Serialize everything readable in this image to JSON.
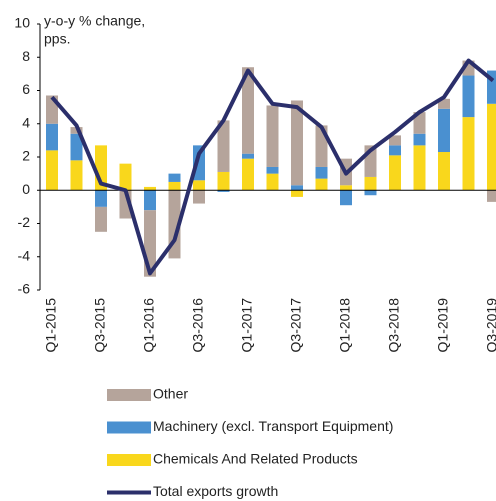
{
  "chart_data": {
    "type": "stacked_bar_line",
    "y_label": [
      "y-o-y % change,",
      "pps."
    ],
    "categories": [
      "Q1-2015",
      null,
      "Q3-2015",
      null,
      "Q1-2016",
      null,
      "Q3-2016",
      null,
      "Q1-2017",
      null,
      "Q3-2017",
      null,
      "Q1-2018",
      null,
      "Q3-2018",
      null,
      "Q1-2019",
      null,
      "Q3-2019"
    ],
    "series": [
      {
        "name": "Chemicals And Related Products",
        "color": "#f9d71c",
        "kind": "bar",
        "values": [
          2.4,
          1.8,
          2.7,
          1.6,
          0.2,
          0.5,
          0.6,
          1.1,
          1.9,
          1.0,
          -0.4,
          0.7,
          0.3,
          0.8,
          2.1,
          2.7,
          2.3,
          4.4,
          5.2
        ]
      },
      {
        "name": "Machinery (excl. Transport Equipment)",
        "color": "#4a90d0",
        "kind": "bar",
        "values": [
          1.6,
          1.6,
          -1.0,
          0,
          -1.2,
          0.5,
          2.1,
          -0.1,
          0.3,
          0.4,
          0.3,
          0.7,
          -0.9,
          -0.3,
          0.6,
          0.7,
          2.6,
          2.5,
          2.0
        ]
      },
      {
        "name": "Other",
        "color": "#b5a49b",
        "kind": "bar",
        "values": [
          1.7,
          0.4,
          -1.5,
          -1.7,
          -4.0,
          -4.1,
          -0.8,
          3.1,
          5.2,
          3.7,
          5.1,
          2.5,
          1.6,
          1.9,
          0.6,
          1.3,
          0.6,
          0.9,
          -0.7
        ]
      },
      {
        "name": "Total exports growth",
        "color": "#2b2f6b",
        "kind": "line",
        "values": [
          5.6,
          3.9,
          0.4,
          0,
          -5.0,
          -3.0,
          2.2,
          4.2,
          7.2,
          5.2,
          5.0,
          3.8,
          1.0,
          2.4,
          3.5,
          4.7,
          5.6,
          7.8,
          6.6
        ]
      }
    ],
    "legend_order": [
      2,
      1,
      0,
      3
    ],
    "ylim": [
      -6,
      10
    ],
    "yticks": [
      -6,
      -4,
      -2,
      0,
      2,
      4,
      6,
      8,
      10
    ]
  }
}
